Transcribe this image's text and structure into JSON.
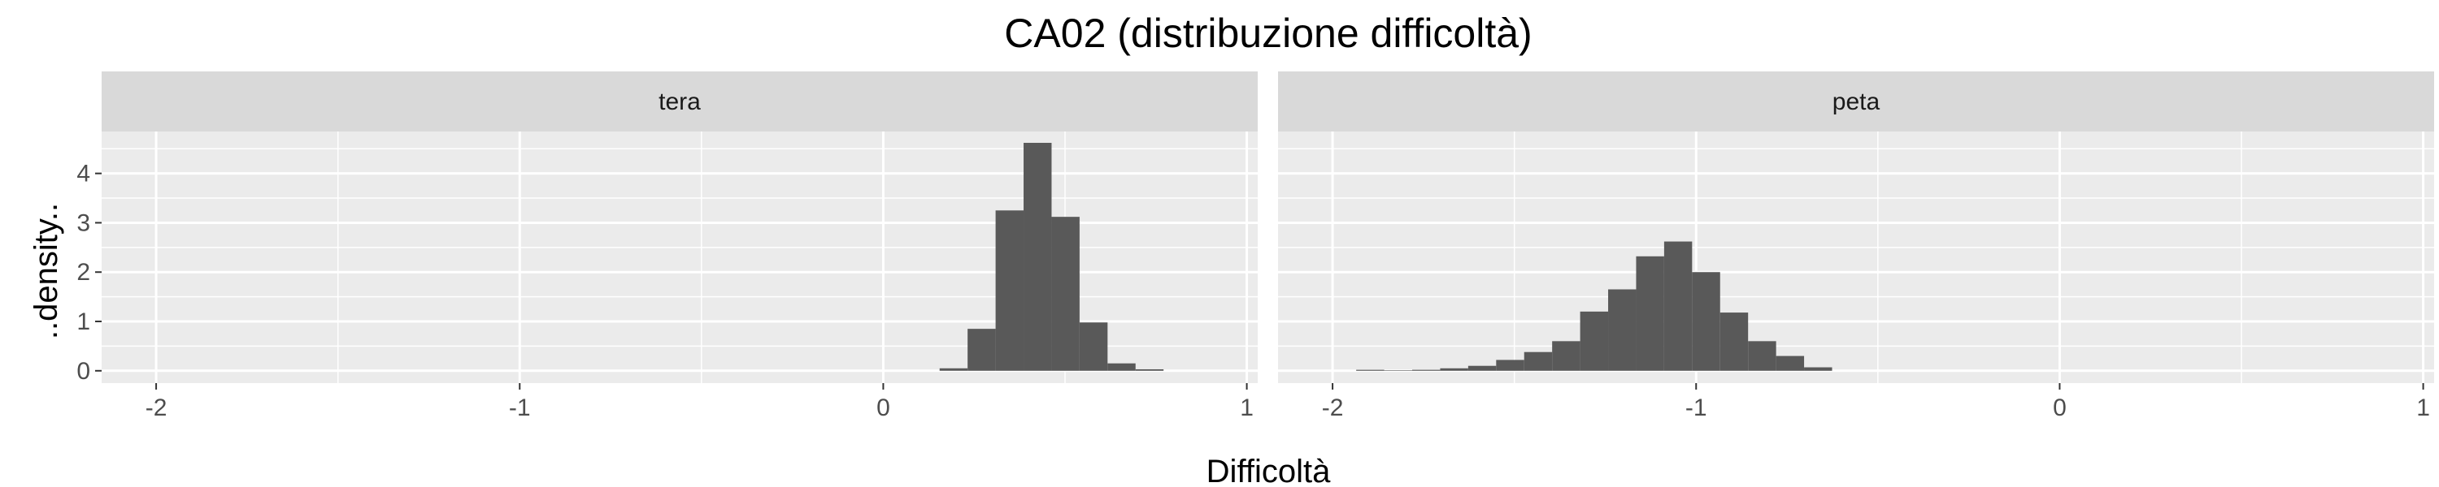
{
  "chart_data": {
    "type": "bar",
    "title": "CA02 (distribuzione difficoltà)",
    "xlabel": "Difficoltà",
    "ylabel": "..density..",
    "xlim": [
      -2.15,
      1.03
    ],
    "ylim": [
      -0.25,
      4.85
    ],
    "x_ticks": [
      -2,
      -1,
      0,
      1
    ],
    "x_tick_labels": [
      "-2",
      "-1",
      "0",
      "1"
    ],
    "y_ticks": [
      0,
      1,
      2,
      3,
      4
    ],
    "y_tick_labels": [
      "0",
      "1",
      "2",
      "3",
      "4"
    ],
    "grid": true,
    "bin_width": 0.077,
    "colors": {
      "bar": "#595959",
      "panel_bg": "#ebebeb",
      "strip_bg": "#d9d9d9",
      "grid": "#ffffff"
    },
    "facets": [
      {
        "label": "tera",
        "bin_starts": [
          0.155,
          0.232,
          0.309,
          0.386,
          0.463,
          0.54,
          0.617,
          0.694
        ],
        "values": [
          0.05,
          0.85,
          3.25,
          4.62,
          3.12,
          0.98,
          0.15,
          0.03
        ]
      },
      {
        "label": "peta",
        "bin_starts": [
          -1.935,
          -1.858,
          -1.781,
          -1.704,
          -1.627,
          -1.55,
          -1.473,
          -1.396,
          -1.319,
          -1.242,
          -1.165,
          -1.088,
          -1.011,
          -0.934,
          -0.857,
          -0.78,
          -0.703
        ],
        "values": [
          0.02,
          0.01,
          0.02,
          0.05,
          0.1,
          0.22,
          0.38,
          0.6,
          1.2,
          1.65,
          2.32,
          2.62,
          2.0,
          1.18,
          0.6,
          0.3,
          0.07
        ]
      }
    ]
  }
}
